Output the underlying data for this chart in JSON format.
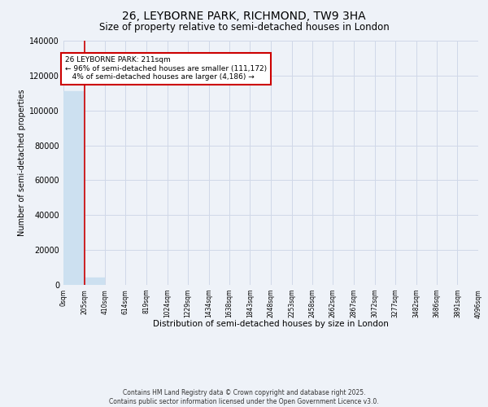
{
  "title": "26, LEYBORNE PARK, RICHMOND, TW9 3HA",
  "subtitle": "Size of property relative to semi-detached houses in London",
  "xlabel": "Distribution of semi-detached houses by size in London",
  "ylabel": "Number of semi-detached properties",
  "property_size": 211,
  "smaller_count": 111172,
  "larger_count": 4186,
  "smaller_pct": 96,
  "larger_pct": 4,
  "annotation_text": "26 LEYBORNE PARK: 211sqm\n← 96% of semi-detached houses are smaller (111,172)\n   4% of semi-detached houses are larger (4,186) →",
  "bar_edges": [
    0,
    205,
    410,
    614,
    819,
    1024,
    1229,
    1434,
    1638,
    1843,
    2048,
    2253,
    2458,
    2662,
    2867,
    3072,
    3277,
    3482,
    3686,
    3891,
    4096
  ],
  "bar_heights": [
    111172,
    4186,
    0,
    0,
    0,
    0,
    0,
    0,
    0,
    0,
    0,
    0,
    0,
    0,
    0,
    0,
    0,
    0,
    0,
    0
  ],
  "bar_color": "#cce0f0",
  "vline_color": "#cc0000",
  "vline_x": 211,
  "annotation_box_color": "#cc0000",
  "grid_color": "#d0d8e8",
  "bg_color": "#eef2f8",
  "footer_line1": "Contains HM Land Registry data © Crown copyright and database right 2025.",
  "footer_line2": "Contains public sector information licensed under the Open Government Licence v3.0.",
  "tick_labels": [
    "0sqm",
    "205sqm",
    "410sqm",
    "614sqm",
    "819sqm",
    "1024sqm",
    "1229sqm",
    "1434sqm",
    "1638sqm",
    "1843sqm",
    "2048sqm",
    "2253sqm",
    "2458sqm",
    "2662sqm",
    "2867sqm",
    "3072sqm",
    "3277sqm",
    "3482sqm",
    "3686sqm",
    "3891sqm",
    "4096sqm"
  ],
  "ylim": [
    0,
    140000
  ],
  "yticks": [
    0,
    20000,
    40000,
    60000,
    80000,
    100000,
    120000,
    140000
  ],
  "ytick_labels": [
    "0",
    "20000",
    "40000",
    "60000",
    "80000",
    "100000",
    "120000",
    "140000"
  ]
}
